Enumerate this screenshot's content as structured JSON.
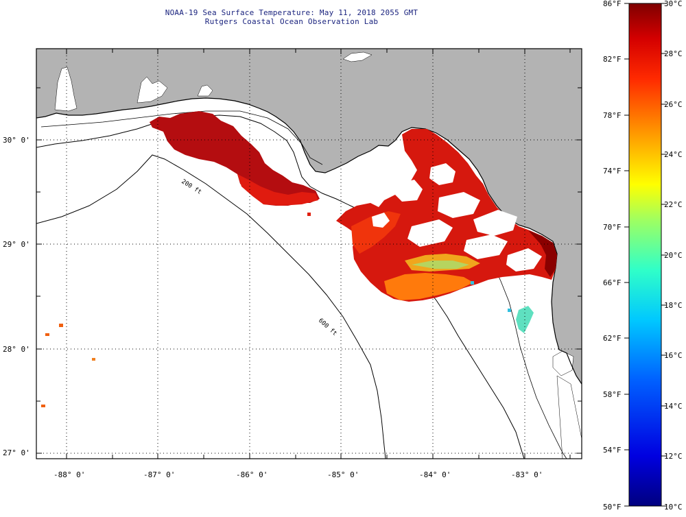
{
  "header": {
    "title": "NOAA-19 Sea Surface Temperature:  May 11, 2018 2055 GMT",
    "subtitle": "Rutgers Coastal Ocean Observation Lab"
  },
  "map": {
    "lat_labels": [
      "30° 0'",
      "29° 0'",
      "28° 0'",
      "27° 0'"
    ],
    "lon_labels": [
      "-88° 0'",
      "-87° 0'",
      "-86° 0'",
      "-85° 0'",
      "-84° 0'",
      "-83° 0'"
    ],
    "isobath_labels": [
      "200 ft",
      "600 ft"
    ],
    "land_color": "#b3b3b3",
    "sea_color": "#ffffff"
  },
  "colorbar": {
    "fahrenheit_labels": [
      "86°F",
      "82°F",
      "78°F",
      "74°F",
      "70°F",
      "66°F",
      "62°F",
      "58°F",
      "54°F",
      "50°F"
    ],
    "celsius_labels": [
      "30°C",
      "28°C",
      "26°C",
      "24°C",
      "22°C",
      "20°C",
      "18°C",
      "16°C",
      "14°C",
      "12°C",
      "10°C"
    ],
    "range_celsius": [
      10,
      30
    ],
    "range_fahrenheit": [
      50,
      86
    ]
  }
}
